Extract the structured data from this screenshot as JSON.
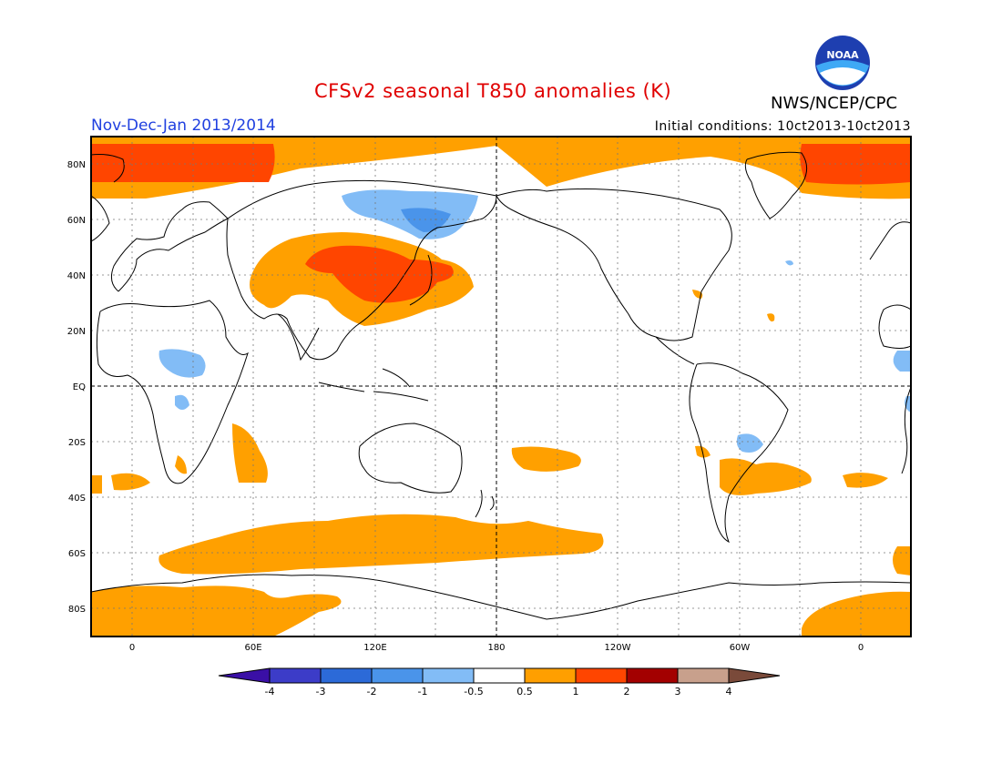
{
  "title": "CFSv2 seasonal T850 anomalies (K)",
  "season": "Nov-Dec-Jan 2013/2014",
  "initial_conditions": "Initial conditions: 10ct2013-10ct2013",
  "agency": "NWS/NCEP/CPC",
  "logo_text": "NOAA",
  "map": {
    "lat_labels": [
      "80N",
      "60N",
      "40N",
      "20N",
      "EQ",
      "20S",
      "40S",
      "60S",
      "80S"
    ],
    "lon_labels": [
      "0",
      "60E",
      "120E",
      "180",
      "120W",
      "60W",
      "0"
    ]
  },
  "colorbar": {
    "labels": [
      "-4",
      "-3",
      "-2",
      "-1",
      "-0.5",
      "0.5",
      "1",
      "2",
      "3",
      "4"
    ],
    "colors": [
      "#3a0fa6",
      "#3c3cc8",
      "#2c6ad8",
      "#4a94ea",
      "#82bcf6",
      "#ffffff",
      "#ff9f00",
      "#ff4500",
      "#a30000",
      "#c8a08c",
      "#7a4a3a"
    ]
  }
}
